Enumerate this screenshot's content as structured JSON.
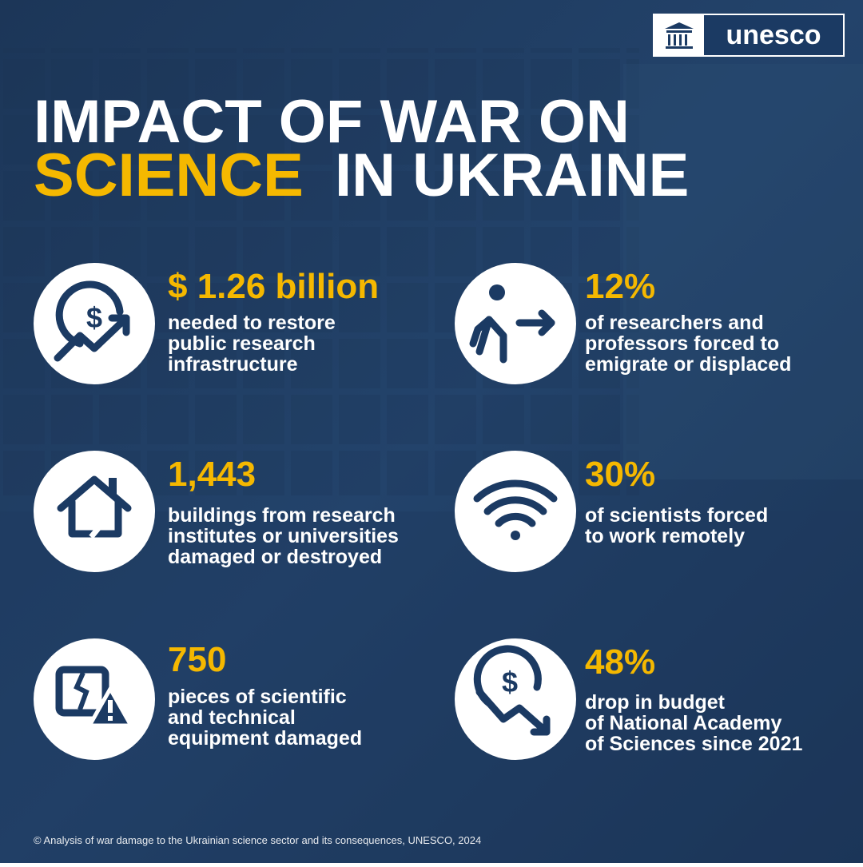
{
  "logo": {
    "text": "unesco"
  },
  "title": {
    "line1": "IMPACT OF WAR ON",
    "highlight": "SCIENCE",
    "line2_rest": "IN UKRAINE"
  },
  "stats": [
    {
      "value": "$ 1.26 billion",
      "description": [
        "needed to restore",
        "public research",
        "infrastructure"
      ]
    },
    {
      "value": "12%",
      "description": [
        "of researchers and",
        "professors forced to",
        "emigrate or displaced"
      ]
    },
    {
      "value": "1,443",
      "description": [
        "buildings from research",
        "institutes or universities",
        "damaged or destroyed"
      ]
    },
    {
      "value": "30%",
      "description": [
        "of scientists forced",
        "to work remotely"
      ]
    },
    {
      "value": "750",
      "description": [
        "pieces of scientific",
        "and technical",
        "equipment damaged"
      ]
    },
    {
      "value": "48%",
      "description": [
        "drop in budget",
        "of National Academy",
        "of Sciences since 2021"
      ]
    }
  ],
  "footer": "© Analysis of war damage to the Ukrainian science sector and its consequences, UNESCO, 2024"
}
